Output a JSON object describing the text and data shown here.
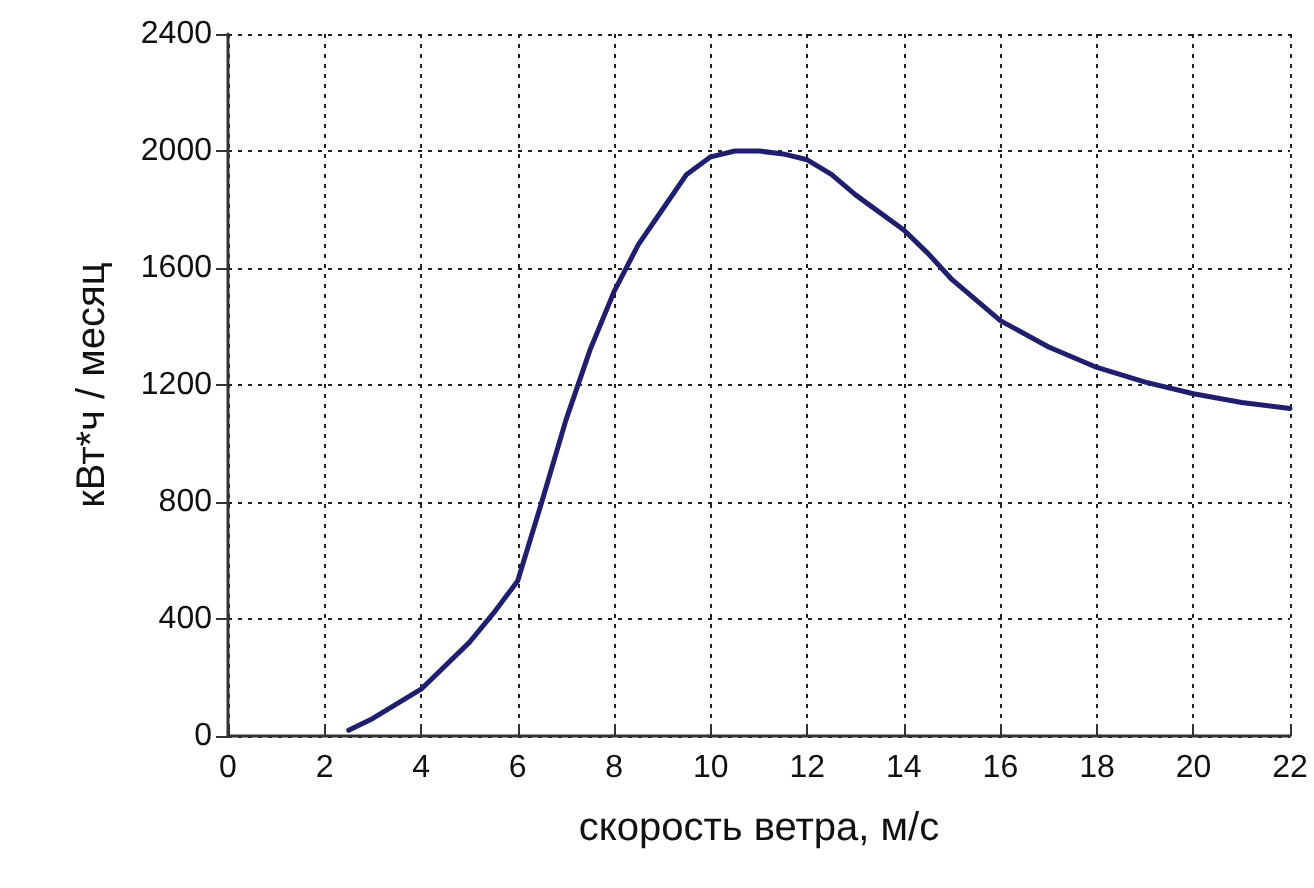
{
  "chart_data": {
    "type": "line",
    "xlabel": "скорость ветра, м/с",
    "ylabel": "кВт*ч / месяц",
    "x": [
      2.5,
      3,
      4,
      5,
      5.5,
      6,
      6.5,
      7,
      7.5,
      8,
      8.5,
      9,
      9.5,
      10,
      10.5,
      11,
      11.5,
      12,
      12.5,
      13,
      14,
      14.5,
      15,
      16,
      17,
      18,
      19,
      20,
      21,
      22
    ],
    "series": [
      {
        "color": "#1f1f6e",
        "values": [
          20,
          60,
          160,
          320,
          420,
          530,
          800,
          1080,
          1320,
          1520,
          1680,
          1800,
          1920,
          1980,
          2000,
          2000,
          1990,
          1970,
          1920,
          1850,
          1730,
          1650,
          1560,
          1420,
          1330,
          1260,
          1210,
          1170,
          1140,
          1120
        ]
      }
    ],
    "xlim": [
      0,
      22
    ],
    "xticks": [
      0,
      2,
      4,
      6,
      8,
      10,
      12,
      14,
      16,
      18,
      20,
      22
    ],
    "ylim": [
      0,
      2400
    ],
    "yticks": [
      0,
      400,
      800,
      1200,
      1600,
      2000,
      2400
    ],
    "grid": true,
    "marker": "none",
    "line_style": "solid"
  }
}
